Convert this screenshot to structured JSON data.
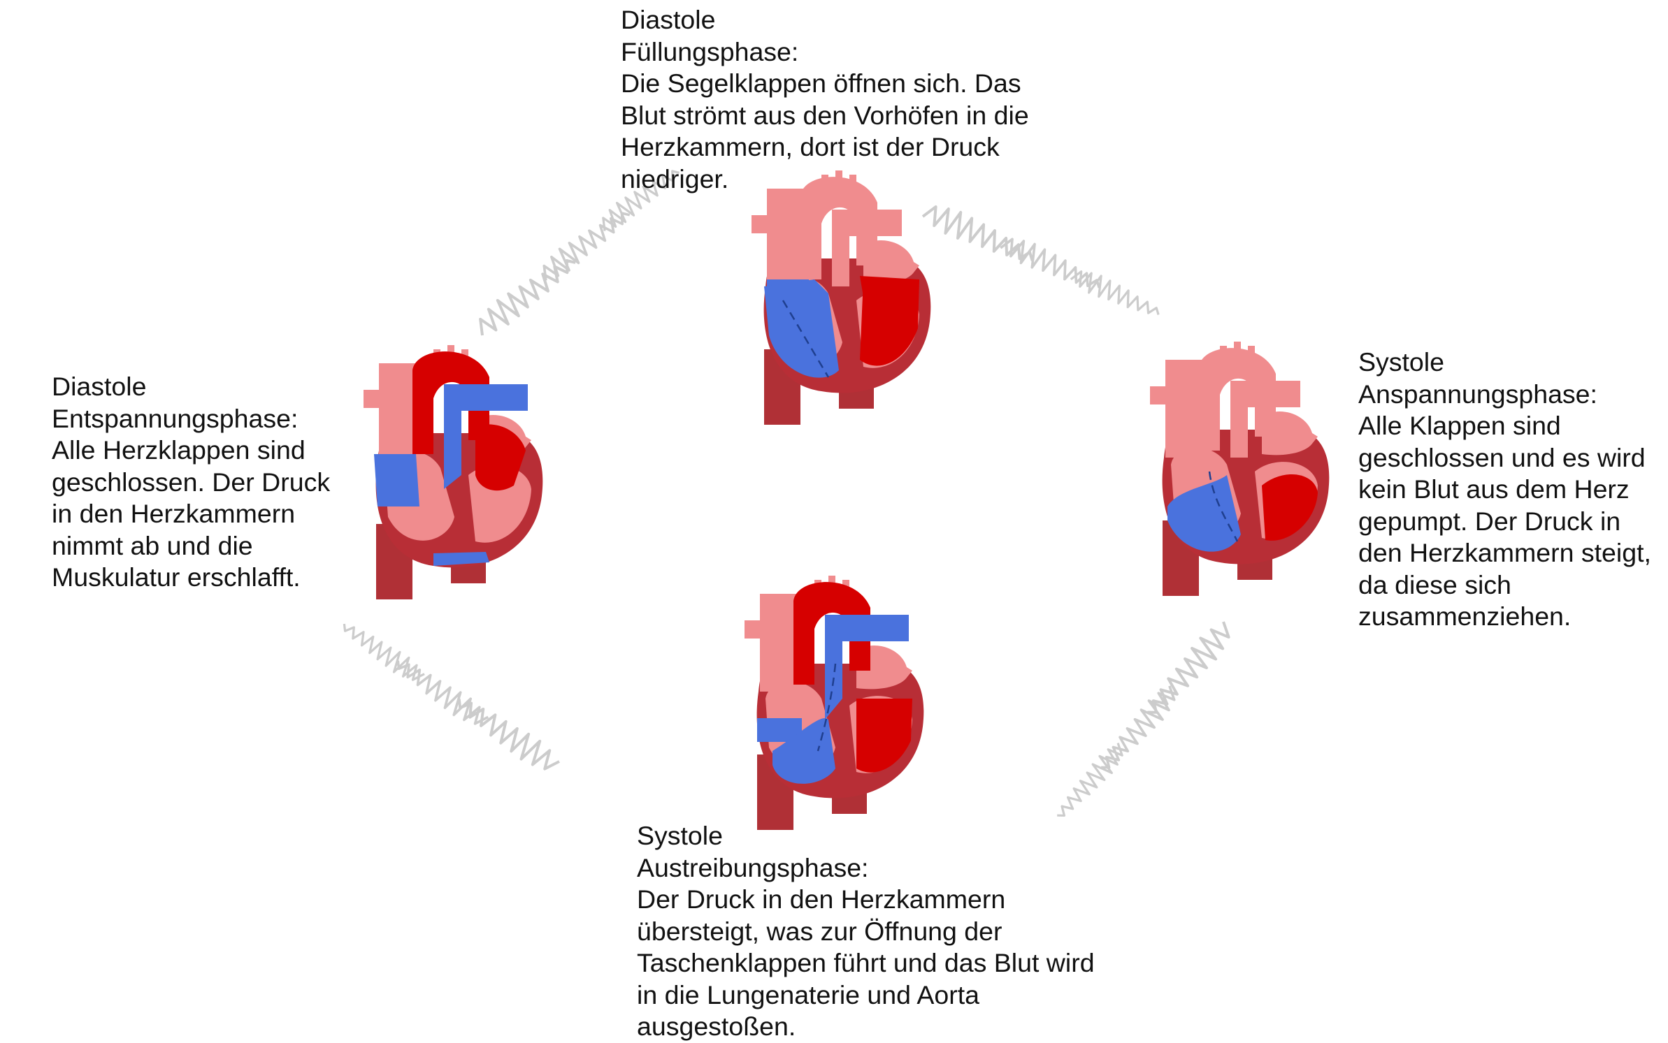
{
  "colors": {
    "arrow_gray": "#cccccc",
    "oxygenated_red": "#d60000",
    "deoxygenated_blue": "#4a72dd",
    "wall_darkred": "#b82e36",
    "atrium_pink": "#f08c8e",
    "vessel_darkred": "#b03036"
  },
  "phases": {
    "top": {
      "name": "Diastole",
      "subtitle": "Füllungsphase:",
      "lines": [
        "Die Segelklappen öffnen sich. Das",
        "Blut strömt aus den Vorhöfen in die",
        "Herzkammern, dort ist der Druck",
        "niedriger."
      ]
    },
    "right": {
      "name": "Systole",
      "subtitle": "Anspannungsphase:",
      "lines": [
        "Alle Klappen sind",
        "geschlossen und es wird",
        "kein Blut aus dem Herz",
        "gepumpt. Der Druck in",
        "den Herzkammern steigt,",
        "da diese sich",
        "zusammenziehen."
      ]
    },
    "bottom": {
      "name": "Systole",
      "subtitle": "Austreibungsphase:",
      "lines": [
        "Der Druck in den Herzkammern",
        "übersteigt, was zur Öffnung der",
        "Taschenklappen führt und das Blut wird",
        "in die Lungenaterie und Aorta",
        "ausgestoßen."
      ]
    },
    "left": {
      "name": "Diastole",
      "subtitle": "Entspannungsphase:",
      "lines": [
        "Alle Herzklappen sind",
        "geschlossen. Der Druck",
        "in den Herzkammern",
        "nimmt ab und die",
        "Muskulatur erschlafft."
      ]
    }
  }
}
